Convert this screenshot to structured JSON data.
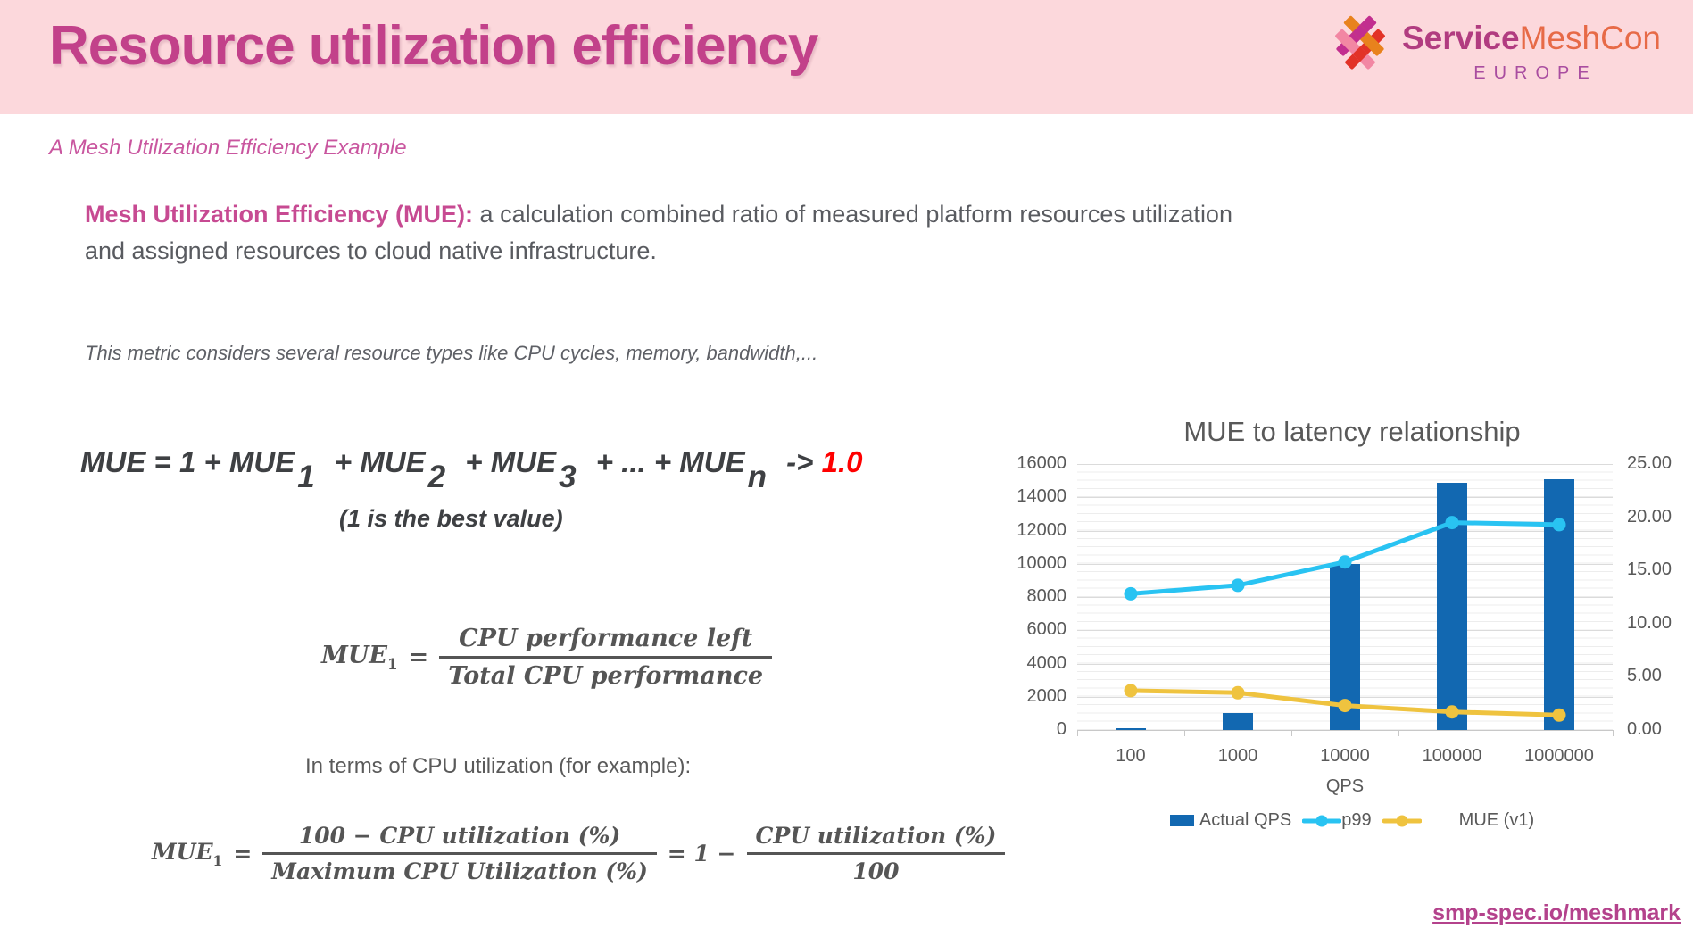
{
  "colors": {
    "band_bg": "#FCD8DC",
    "title_pink": "#C2418A",
    "accent_pink": "#C74A92",
    "body_gray": "#595B60",
    "math_gray": "#555555",
    "formula_red": "#FF0000",
    "bar_blue": "#1268B1",
    "line_cyan": "#29C3F2",
    "line_yellow": "#EFC33F",
    "chart_text": "#595959",
    "link_pink": "#B4428C"
  },
  "header": {
    "title": "Resource utilization efficiency",
    "logo": {
      "brand_bold": "Service",
      "brand_rest": "MeshCon",
      "region": "EUROPE"
    }
  },
  "subtitle": "A Mesh Utilization Efficiency Example",
  "intro": {
    "lead": "Mesh Utilization Efficiency (MUE):",
    "rest": " a calculation combined ratio of measured platform resources utilization and assigned resources to cloud native infrastructure."
  },
  "note": "This metric considers several resource types like CPU cycles, memory, bandwidth,...",
  "formula_sum": {
    "head": "MUE",
    "lead": " = 1 + MUE",
    "terms": [
      {
        "sub": "1",
        "joiner": " + MUE"
      },
      {
        "sub": "2",
        "joiner": " + MUE"
      },
      {
        "sub": "3",
        "joiner": " + ... + MUE"
      },
      {
        "sub": "n",
        "joiner": "  -> "
      }
    ],
    "target": "1.0",
    "note": "(1 is the best value)"
  },
  "formula_mue1": {
    "lhs": "MUE",
    "lhs_sub": "1",
    "eq": "=",
    "num": "CPU performance left",
    "den": "Total CPU performance"
  },
  "in_terms": "In terms of CPU utilization (for example):",
  "formula_cpu": {
    "lhs": "MUE",
    "lhs_sub": "1",
    "eq": "=",
    "frac1": {
      "num": "100 − CPU utilization (%)",
      "den": "Maximum CPU Utilization (%)"
    },
    "mid": "= 1 −",
    "frac2": {
      "num": "CPU utilization (%)",
      "den": "100"
    }
  },
  "chart_data": {
    "type": "bar+line combo",
    "title": "MUE to latency relationship",
    "categories": [
      "100",
      "1000",
      "10000",
      "100000",
      "1000000"
    ],
    "xlabel": "QPS",
    "left_axis": {
      "min": 0,
      "max": 16000,
      "step": 2000
    },
    "right_axis": {
      "min": 0,
      "max": 25,
      "step": 5,
      "labels": [
        "25.00",
        "20.00",
        "15.00",
        "10.00",
        "5.00",
        "0.00"
      ]
    },
    "series": [
      {
        "name": "Actual QPS",
        "type": "bar",
        "axis": "left",
        "color": "#1268B1",
        "values": [
          100,
          1000,
          10000,
          14900,
          15100
        ]
      },
      {
        "name": "p99",
        "type": "line",
        "axis": "right",
        "color": "#29C3F2",
        "values": [
          12.8,
          13.6,
          15.8,
          19.5,
          19.3
        ]
      },
      {
        "name": "MUE (v1)",
        "type": "line",
        "axis": "right",
        "color": "#EFC33F",
        "values": [
          3.7,
          3.5,
          2.3,
          1.7,
          1.4
        ]
      }
    ],
    "legend_position": "bottom",
    "grid": "horizontal major + minor"
  },
  "footer": {
    "link": "smp-spec.io/meshmark"
  }
}
